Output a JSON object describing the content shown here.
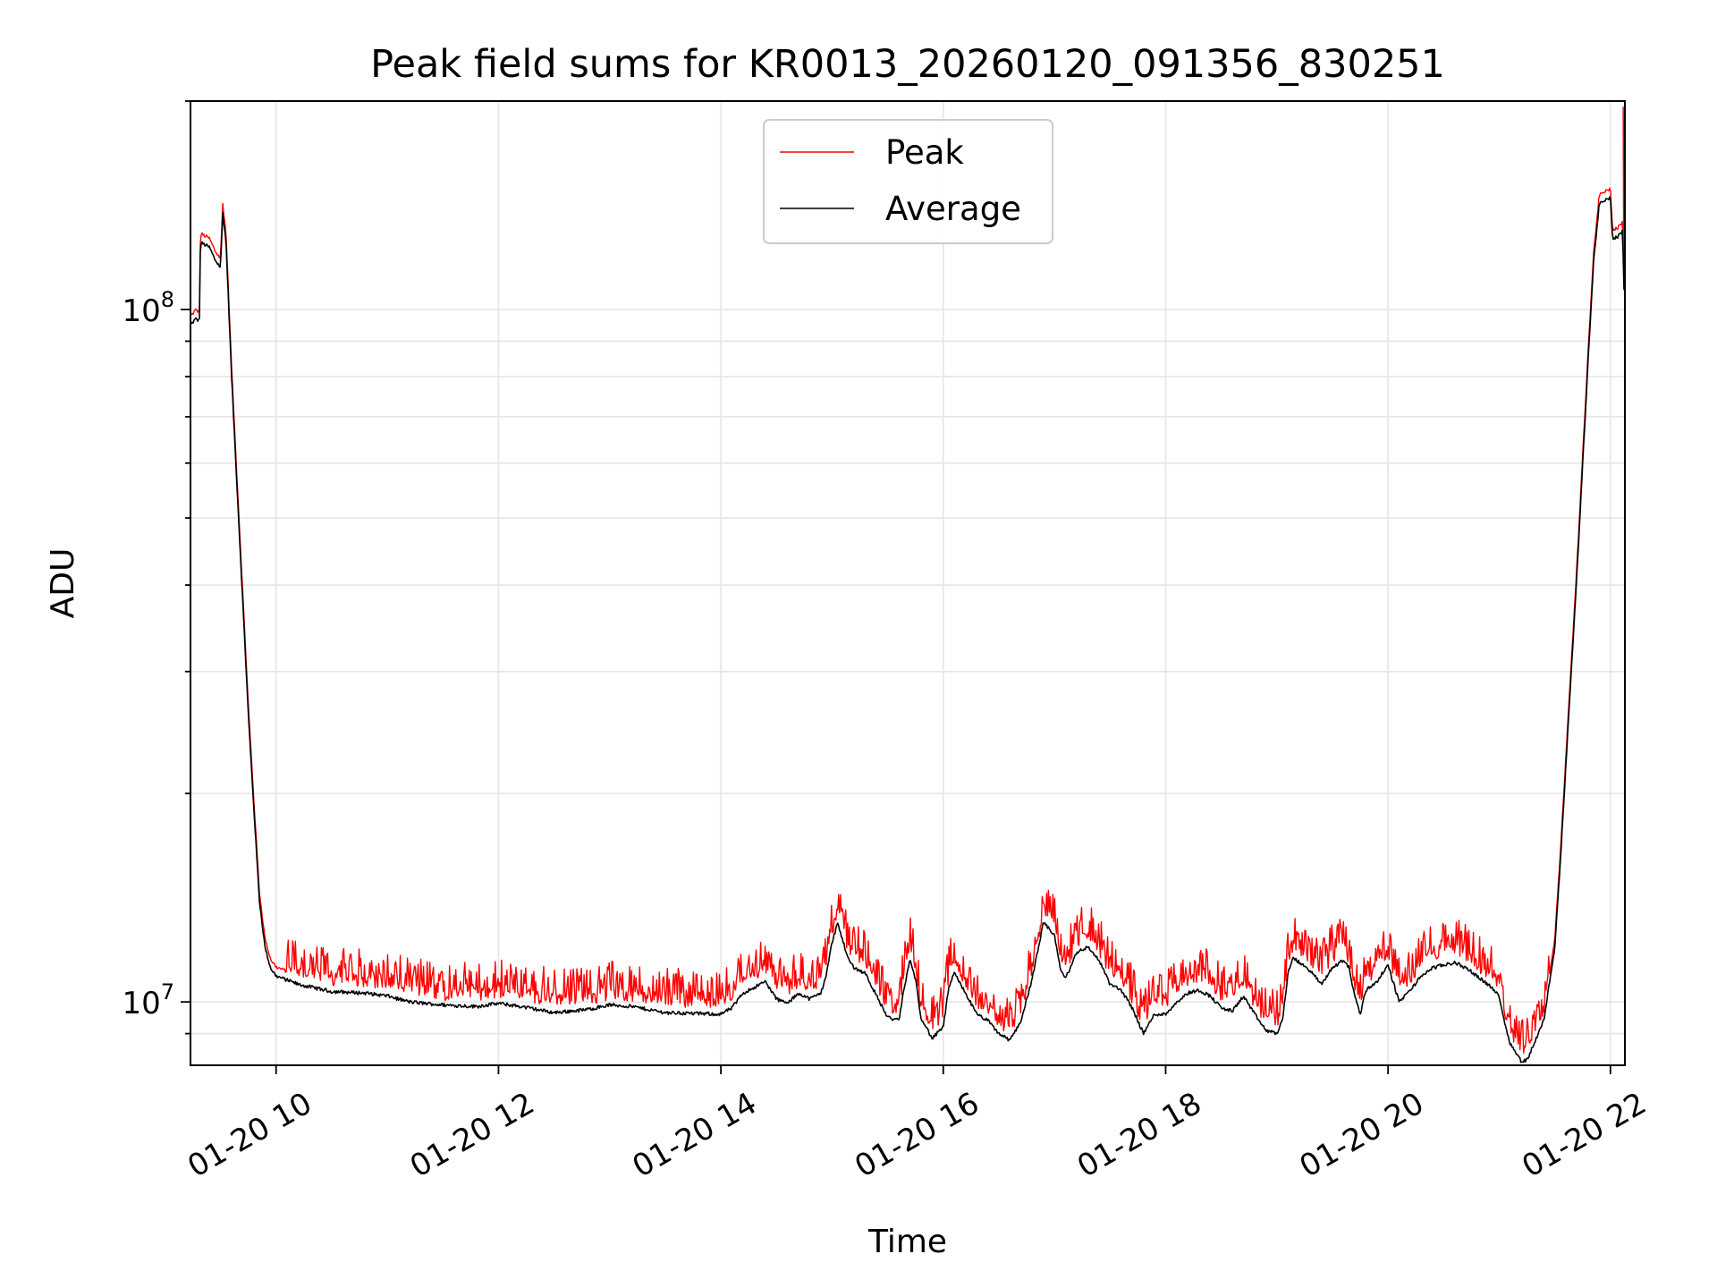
{
  "chart_data": {
    "type": "line",
    "title": "Peak field sums for KR0013_20260120_091356_830251",
    "xlabel": "Time",
    "ylabel": "ADU",
    "yscale": "log",
    "xlim": [
      9.23,
      22.13
    ],
    "ylim": [
      8100000,
      200000000
    ],
    "x_ticks": [
      10,
      12,
      14,
      16,
      18,
      20,
      22
    ],
    "x_tick_labels": [
      "01-20 10",
      "01-20 12",
      "01-20 14",
      "01-20 16",
      "01-20 18",
      "01-20 20",
      "01-20 22"
    ],
    "y_major_ticks": [
      10000000,
      100000000
    ],
    "y_tick_labels": [
      {
        "mantissa": "10",
        "exponent": "7"
      },
      {
        "mantissa": "10",
        "exponent": "8"
      }
    ],
    "y_minor_ticks": [
      9000000,
      20000000,
      30000000,
      40000000,
      50000000,
      60000000,
      70000000,
      80000000,
      90000000,
      200000000
    ],
    "grid": true,
    "legend_position": "top-center",
    "series": [
      {
        "name": "Peak",
        "color": "#ff0000",
        "baseline_from": "Average",
        "spike_ratio": 1.12,
        "spike_density": 0.55
      },
      {
        "name": "Average",
        "color": "#000000",
        "points": [
          [
            9.23,
            95000000
          ],
          [
            9.28,
            97000000
          ],
          [
            9.31,
            96000000
          ],
          [
            9.32,
            125000000
          ],
          [
            9.4,
            123000000
          ],
          [
            9.45,
            118000000
          ],
          [
            9.5,
            115000000
          ],
          [
            9.52,
            138000000
          ],
          [
            9.55,
            125000000
          ],
          [
            9.6,
            80000000
          ],
          [
            9.65,
            55000000
          ],
          [
            9.7,
            38000000
          ],
          [
            9.75,
            26000000
          ],
          [
            9.8,
            19000000
          ],
          [
            9.85,
            14000000
          ],
          [
            9.9,
            12000000
          ],
          [
            9.95,
            11200000
          ],
          [
            10.0,
            10900000
          ],
          [
            10.2,
            10600000
          ],
          [
            10.5,
            10350000
          ],
          [
            10.8,
            10300000
          ],
          [
            11.0,
            10200000
          ],
          [
            11.2,
            10000000
          ],
          [
            11.5,
            9900000
          ],
          [
            11.8,
            9850000
          ],
          [
            12.0,
            9950000
          ],
          [
            12.2,
            9850000
          ],
          [
            12.5,
            9650000
          ],
          [
            12.8,
            9750000
          ],
          [
            13.0,
            9900000
          ],
          [
            13.2,
            9850000
          ],
          [
            13.5,
            9650000
          ],
          [
            13.8,
            9620000
          ],
          [
            14.0,
            9600000
          ],
          [
            14.1,
            9800000
          ],
          [
            14.2,
            10300000
          ],
          [
            14.4,
            10700000
          ],
          [
            14.5,
            10100000
          ],
          [
            14.6,
            9950000
          ],
          [
            14.7,
            10300000
          ],
          [
            14.8,
            10100000
          ],
          [
            14.9,
            10300000
          ],
          [
            14.95,
            11000000
          ],
          [
            15.0,
            12200000
          ],
          [
            15.05,
            13000000
          ],
          [
            15.1,
            12200000
          ],
          [
            15.15,
            11500000
          ],
          [
            15.2,
            11200000
          ],
          [
            15.3,
            11000000
          ],
          [
            15.4,
            10200000
          ],
          [
            15.5,
            9500000
          ],
          [
            15.6,
            9400000
          ],
          [
            15.65,
            10500000
          ],
          [
            15.7,
            11500000
          ],
          [
            15.75,
            10800000
          ],
          [
            15.8,
            9500000
          ],
          [
            15.9,
            8850000
          ],
          [
            16.0,
            9200000
          ],
          [
            16.05,
            10500000
          ],
          [
            16.1,
            11000000
          ],
          [
            16.2,
            10300000
          ],
          [
            16.3,
            9600000
          ],
          [
            16.4,
            9400000
          ],
          [
            16.5,
            9000000
          ],
          [
            16.6,
            8800000
          ],
          [
            16.7,
            9400000
          ],
          [
            16.8,
            10800000
          ],
          [
            16.9,
            13000000
          ],
          [
            17.0,
            12500000
          ],
          [
            17.05,
            11200000
          ],
          [
            17.1,
            10800000
          ],
          [
            17.2,
            11800000
          ],
          [
            17.3,
            12000000
          ],
          [
            17.4,
            11500000
          ],
          [
            17.5,
            10600000
          ],
          [
            17.6,
            10400000
          ],
          [
            17.7,
            9800000
          ],
          [
            17.8,
            9000000
          ],
          [
            17.9,
            9600000
          ],
          [
            18.0,
            9600000
          ],
          [
            18.1,
            10000000
          ],
          [
            18.2,
            10300000
          ],
          [
            18.3,
            10400000
          ],
          [
            18.4,
            10200000
          ],
          [
            18.5,
            9800000
          ],
          [
            18.6,
            9700000
          ],
          [
            18.7,
            10200000
          ],
          [
            18.8,
            9600000
          ],
          [
            18.9,
            9100000
          ],
          [
            19.0,
            9000000
          ],
          [
            19.05,
            9400000
          ],
          [
            19.1,
            11000000
          ],
          [
            19.15,
            11600000
          ],
          [
            19.2,
            11400000
          ],
          [
            19.3,
            11100000
          ],
          [
            19.4,
            10600000
          ],
          [
            19.5,
            11200000
          ],
          [
            19.6,
            11500000
          ],
          [
            19.65,
            11200000
          ],
          [
            19.7,
            10200000
          ],
          [
            19.75,
            9600000
          ],
          [
            19.8,
            10400000
          ],
          [
            19.9,
            10700000
          ],
          [
            20.0,
            11300000
          ],
          [
            20.1,
            10000000
          ],
          [
            20.2,
            10400000
          ],
          [
            20.3,
            10900000
          ],
          [
            20.4,
            11200000
          ],
          [
            20.5,
            11300000
          ],
          [
            20.6,
            11400000
          ],
          [
            20.7,
            11200000
          ],
          [
            20.8,
            10900000
          ],
          [
            20.9,
            10600000
          ],
          [
            21.0,
            10200000
          ],
          [
            21.05,
            9300000
          ],
          [
            21.1,
            8700000
          ],
          [
            21.2,
            8200000
          ],
          [
            21.25,
            8250000
          ],
          [
            21.3,
            8600000
          ],
          [
            21.4,
            9400000
          ],
          [
            21.5,
            12000000
          ],
          [
            21.55,
            16000000
          ],
          [
            21.6,
            22000000
          ],
          [
            21.7,
            42000000
          ],
          [
            21.8,
            85000000
          ],
          [
            21.85,
            118000000
          ],
          [
            21.9,
            142000000
          ],
          [
            22.0,
            145000000
          ],
          [
            22.02,
            126000000
          ],
          [
            22.08,
            128000000
          ],
          [
            22.11,
            130000000
          ],
          [
            22.12,
            106000000
          ],
          [
            22.13,
            108000000
          ]
        ]
      }
    ]
  }
}
